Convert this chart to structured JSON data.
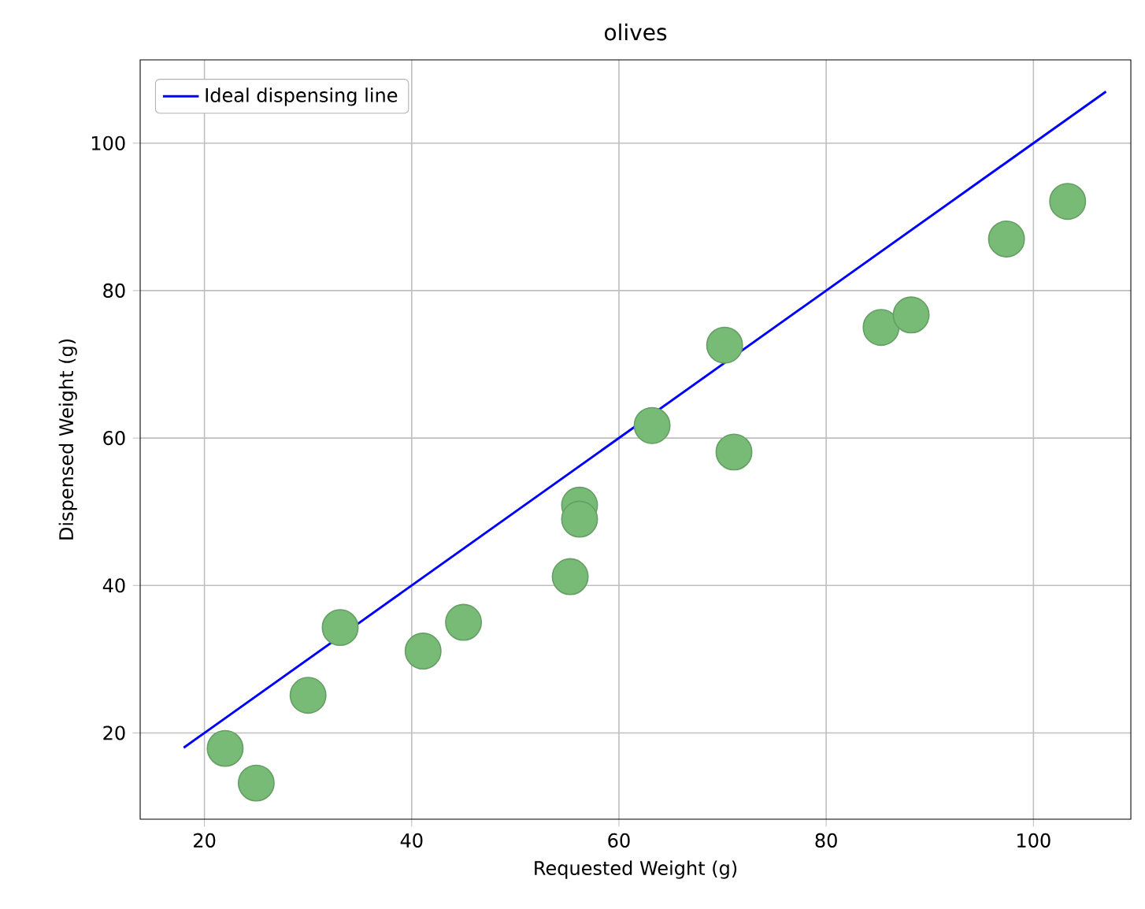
{
  "chart_data": {
    "type": "scatter",
    "title": "olives",
    "xlabel": "Requested Weight (g)",
    "ylabel": "Dispensed Weight (g)",
    "xlim": [
      13.8,
      109.4
    ],
    "ylim": [
      8.3,
      111.3
    ],
    "xticks": [
      20,
      40,
      60,
      80,
      100
    ],
    "yticks": [
      20,
      40,
      60,
      80,
      100
    ],
    "grid": true,
    "legend": "top left",
    "series": [
      {
        "type": "line",
        "name": "Ideal dispensing line",
        "color": "#0000ff",
        "x": [
          18,
          107
        ],
        "values": [
          18,
          107
        ],
        "marker": "none",
        "line_style": "solid"
      },
      {
        "color": "#77bb77",
        "marker": "circle",
        "x": [
          22,
          25,
          30,
          33.1,
          41.1,
          45,
          55.3,
          56.2,
          56.2,
          63.2,
          70.2,
          71.1,
          85.3,
          88.2,
          97.4,
          103.3
        ],
        "values": [
          17.9,
          13.2,
          25.1,
          34.3,
          31.1,
          35,
          41.2,
          50.9,
          49,
          61.7,
          72.6,
          58.1,
          75,
          76.7,
          87,
          92.1
        ]
      }
    ]
  }
}
